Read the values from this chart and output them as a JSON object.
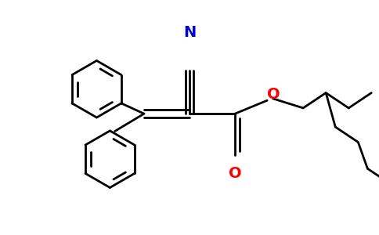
{
  "bg_color": "#ffffff",
  "bond_color": "#000000",
  "N_color": "#0000cd",
  "O_color": "#ff0000",
  "lw": 2.0,
  "dbo": 0.022,
  "figsize": [
    4.84,
    3.0
  ],
  "dpi": 100,
  "xlim": [
    0,
    10
  ],
  "ylim": [
    0,
    6.2
  ]
}
